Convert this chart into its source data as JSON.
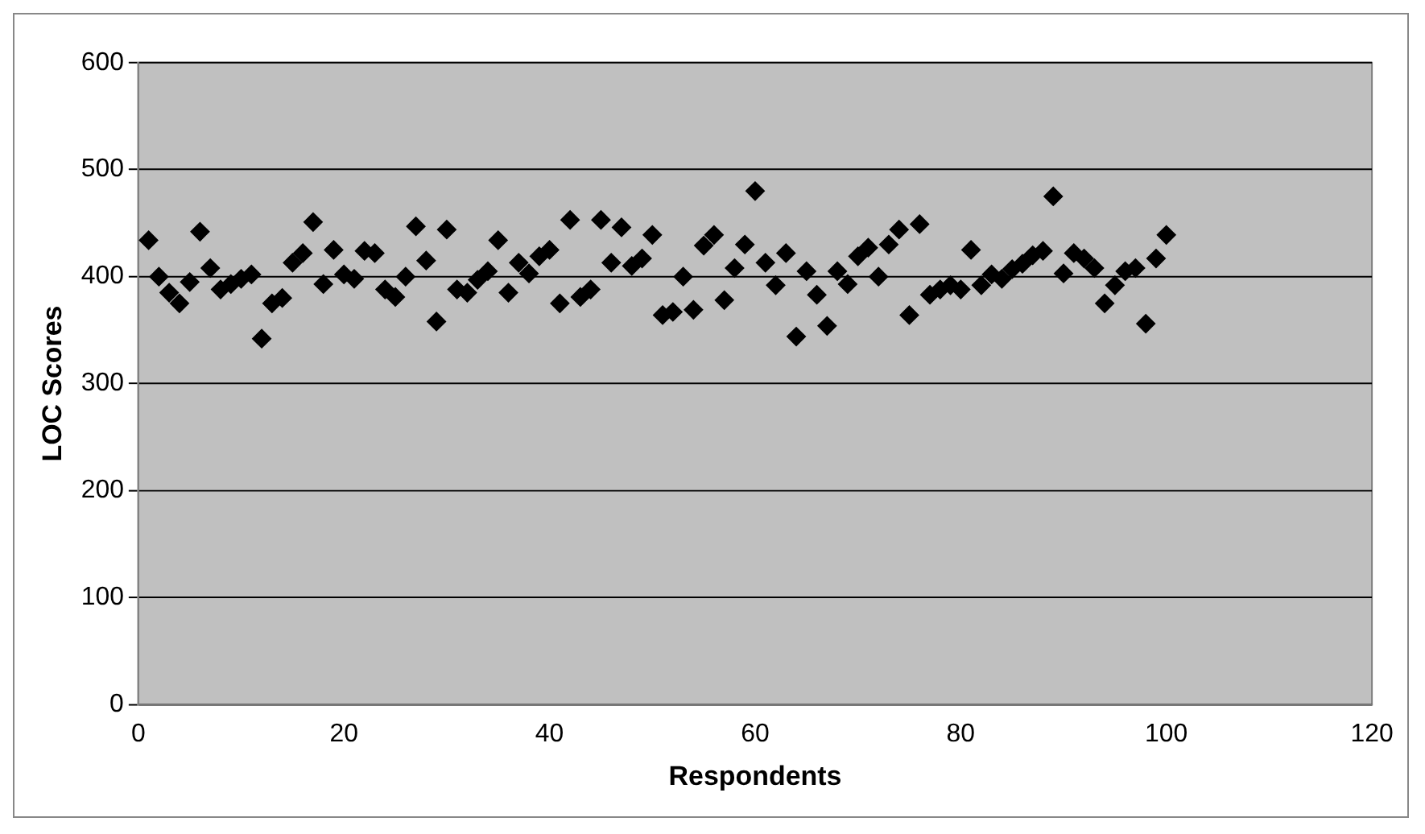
{
  "chart_data": {
    "type": "scatter",
    "xlabel": "Respondents",
    "ylabel": "LOC Scores",
    "x": [
      1,
      2,
      3,
      4,
      5,
      6,
      7,
      8,
      9,
      10,
      11,
      12,
      13,
      14,
      15,
      16,
      17,
      18,
      19,
      20,
      21,
      22,
      23,
      24,
      25,
      26,
      27,
      28,
      29,
      30,
      31,
      32,
      33,
      34,
      35,
      36,
      37,
      38,
      39,
      40,
      41,
      42,
      43,
      44,
      45,
      46,
      47,
      48,
      49,
      50,
      51,
      52,
      53,
      54,
      55,
      56,
      57,
      58,
      59,
      60,
      61,
      62,
      63,
      64,
      65,
      66,
      67,
      68,
      69,
      70,
      71,
      72,
      73,
      74,
      75,
      76,
      77,
      78,
      79,
      80,
      81,
      82,
      83,
      84,
      85,
      86,
      87,
      88,
      89,
      90,
      91,
      92,
      93,
      94,
      95,
      96,
      97,
      98,
      99,
      100
    ],
    "series": [
      {
        "color": "#000000",
        "values": [
          434,
          400,
          385,
          375,
          395,
          442,
          408,
          388,
          393,
          398,
          402,
          342,
          375,
          380,
          413,
          422,
          451,
          393,
          425,
          402,
          398,
          424,
          422,
          388,
          381,
          400,
          447,
          415,
          358,
          444,
          388,
          385,
          397,
          405,
          434,
          385,
          413,
          403,
          419,
          425,
          375,
          453,
          381,
          388,
          453,
          413,
          446,
          410,
          417,
          439,
          364,
          367,
          400,
          369,
          429,
          439,
          378,
          408,
          430,
          480,
          413,
          392,
          422,
          344,
          405,
          383,
          354,
          405,
          393,
          419,
          427,
          400,
          430,
          444,
          364,
          449,
          383,
          388,
          392,
          388,
          425,
          392,
          402,
          398,
          407,
          412,
          420,
          424,
          475,
          403,
          422,
          417,
          408,
          375,
          392,
          405,
          408,
          356,
          417,
          439
        ]
      }
    ],
    "xlim": [
      0,
      120
    ],
    "xticks": [
      0,
      20,
      40,
      60,
      80,
      100,
      120
    ],
    "ylim": [
      0,
      600
    ],
    "yticks": [
      0,
      100,
      200,
      300,
      400,
      500,
      600
    ],
    "grid": "y",
    "marker": "diamond",
    "legend": false
  }
}
